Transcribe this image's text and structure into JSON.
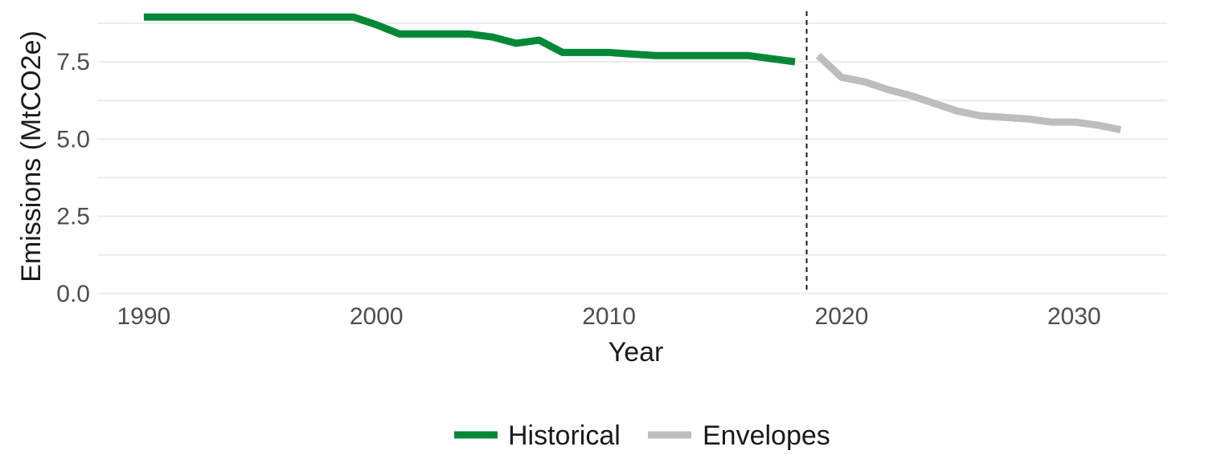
{
  "chart_data": {
    "type": "line",
    "title": "",
    "xlabel": "Year",
    "ylabel": "Emissions (MtCO2e)",
    "xlim": [
      1988,
      2034
    ],
    "ylim": [
      -0.5,
      9.5
    ],
    "x_ticks": [
      1990,
      2000,
      2010,
      2020,
      2030
    ],
    "x_tick_labels": [
      "1990",
      "2000",
      "2010",
      "2020",
      "2030"
    ],
    "y_ticks": [
      0,
      2.5,
      5,
      7.5
    ],
    "y_tick_labels": [
      "0.0",
      "2.5",
      "5.0",
      "7.5"
    ],
    "grid": true,
    "legend_position": "bottom",
    "reference_line": {
      "x": 2018.5,
      "style": "dashed"
    },
    "series": [
      {
        "name": "Historical",
        "color": "#008837",
        "x": [
          1990,
          1991,
          1992,
          1993,
          1994,
          1995,
          1996,
          1997,
          1998,
          1999,
          2000,
          2001,
          2002,
          2003,
          2004,
          2005,
          2006,
          2007,
          2008,
          2009,
          2010,
          2011,
          2012,
          2013,
          2014,
          2015,
          2016,
          2017,
          2018
        ],
        "y": [
          8.95,
          8.95,
          8.95,
          8.95,
          8.95,
          8.95,
          8.95,
          8.95,
          8.95,
          8.95,
          8.7,
          8.4,
          8.4,
          8.4,
          8.4,
          8.3,
          8.1,
          8.2,
          7.8,
          7.8,
          7.8,
          7.75,
          7.7,
          7.7,
          7.7,
          7.7,
          7.7,
          7.6,
          7.5
        ]
      },
      {
        "name": "Envelopes",
        "color": "#bdbdbd",
        "x": [
          2019,
          2020,
          2021,
          2022,
          2023,
          2024,
          2025,
          2026,
          2027,
          2028,
          2029,
          2030,
          2031,
          2032
        ],
        "y": [
          7.7,
          7.0,
          6.85,
          6.6,
          6.4,
          6.15,
          5.9,
          5.75,
          5.7,
          5.65,
          5.55,
          5.55,
          5.45,
          5.3
        ]
      }
    ]
  }
}
